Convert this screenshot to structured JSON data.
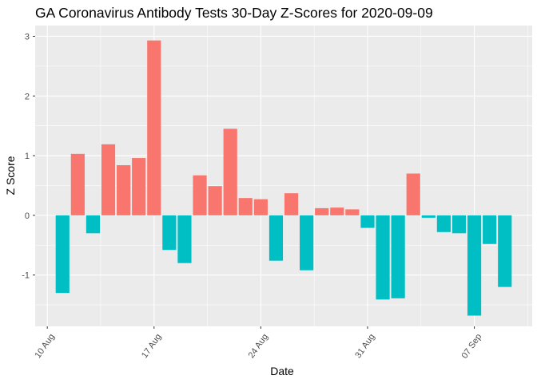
{
  "chart_data": {
    "type": "bar",
    "title": "GA Coronavirus Antibody Tests 30-Day Z-Scores for 2020-09-09",
    "xlabel": "Date",
    "ylabel": "Z Score",
    "x_tick_labels": [
      "10 Aug",
      "17 Aug",
      "24 Aug",
      "31 Aug",
      "07 Sep"
    ],
    "y_tick_labels": [
      "-1",
      "0",
      "1",
      "2",
      "3"
    ],
    "ylim": [
      -1.86,
      3.18
    ],
    "grid": true,
    "legend": "none",
    "colors": {
      "positive": "#F8766D",
      "negative": "#00BFC4",
      "panel": "#EBEBEB",
      "grid": "#FFFFFF"
    },
    "dates": [
      "2020-08-11",
      "2020-08-12",
      "2020-08-13",
      "2020-08-14",
      "2020-08-15",
      "2020-08-16",
      "2020-08-17",
      "2020-08-18",
      "2020-08-19",
      "2020-08-20",
      "2020-08-21",
      "2020-08-22",
      "2020-08-23",
      "2020-08-24",
      "2020-08-25",
      "2020-08-26",
      "2020-08-27",
      "2020-08-28",
      "2020-08-29",
      "2020-08-30",
      "2020-08-31",
      "2020-09-01",
      "2020-09-02",
      "2020-09-03",
      "2020-09-04",
      "2020-09-05",
      "2020-09-06",
      "2020-09-07",
      "2020-09-08",
      "2020-09-09"
    ],
    "values": [
      -1.3,
      1.03,
      -0.3,
      1.19,
      0.84,
      0.96,
      2.93,
      -0.58,
      -0.8,
      0.67,
      0.49,
      1.45,
      0.29,
      0.27,
      -0.76,
      0.37,
      -0.92,
      0.12,
      0.13,
      0.1,
      -0.21,
      -1.41,
      -1.39,
      0.7,
      -0.04,
      -0.28,
      -0.3,
      -1.68,
      -0.48,
      -1.2
    ]
  }
}
